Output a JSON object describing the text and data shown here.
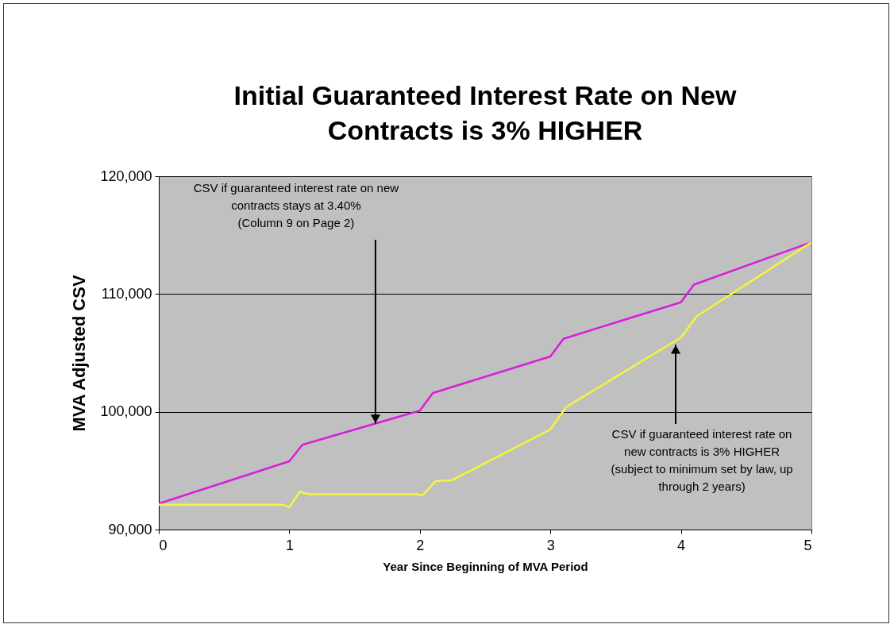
{
  "chart_data": {
    "type": "line",
    "title": "Initial Guaranteed Interest Rate on New Contracts is 3% HIGHER",
    "xlabel": "Year Since Beginning of MVA Period",
    "ylabel": "MVA Adjusted CSV",
    "series": [
      {
        "color": "#d91ed9",
        "x": [
          0,
          1.0,
          1.1,
          2.0,
          2.1,
          3.0,
          3.1,
          4.0,
          4.1,
          5
        ],
        "values": [
          92200,
          95800,
          97200,
          100100,
          101600,
          104700,
          106200,
          109300,
          110800,
          114400
        ]
      },
      {
        "color": "#f5f53a",
        "x": [
          0,
          0.95,
          1.0,
          1.08,
          1.15,
          1.98,
          2.02,
          2.12,
          2.25,
          3.0,
          3.12,
          4.0,
          4.12,
          5
        ],
        "values": [
          92100,
          92100,
          91900,
          93200,
          93000,
          93000,
          92900,
          94100,
          94200,
          98500,
          100400,
          106300,
          108100,
          114400
        ]
      }
    ],
    "xlim": [
      0,
      5
    ],
    "xticks": [
      0,
      1,
      2,
      3,
      4,
      5
    ],
    "ylim": [
      90000,
      120000
    ],
    "yticks": [
      {
        "value": 90000,
        "label": "90,000"
      },
      {
        "value": 100000,
        "label": "100,000"
      },
      {
        "value": 110000,
        "label": "110,000"
      },
      {
        "value": 120000,
        "label": "120,000"
      }
    ],
    "grid": "y",
    "annotations": [
      {
        "text": "CSV if guaranteed interest rate on new contracts stays at 3.40% (Column 9 on Page 2)",
        "x": 1.66,
        "y": 99000
      },
      {
        "text": "CSV if guaranteed interest rate on new contracts is 3% HIGHER (subject to minimum set by law, up through 2 years)",
        "x": 3.96,
        "y": 105700
      }
    ]
  }
}
